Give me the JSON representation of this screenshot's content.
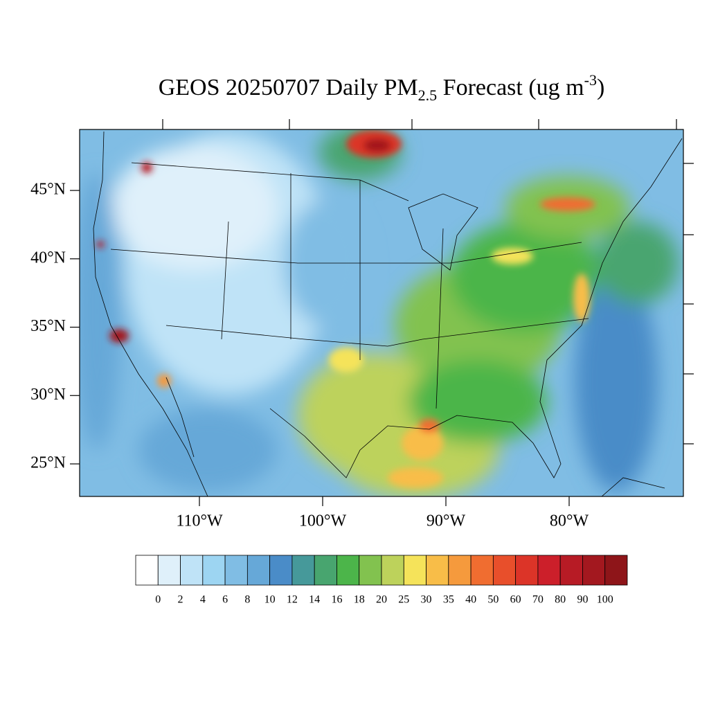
{
  "map": {
    "title": {
      "main": "GEOS 20250707 Daily PM",
      "sub": "2.5",
      "rest": " Forecast (ug m",
      "sup": "-3",
      "end": ")"
    },
    "lat_range": [
      22.62,
      49.46
    ],
    "lon_range": [
      -119.72,
      -70.73
    ],
    "lat_ticks": [
      {
        "value": 25,
        "label": "25°N"
      },
      {
        "value": 30,
        "label": "30°N"
      },
      {
        "value": 35,
        "label": "35°N"
      },
      {
        "value": 40,
        "label": "40°N"
      },
      {
        "value": 45,
        "label": "45°N"
      }
    ],
    "lon_ticks": [
      {
        "value": -110,
        "label": "110°W"
      },
      {
        "value": -100,
        "label": "100°W"
      },
      {
        "value": -90,
        "label": "90°W"
      },
      {
        "value": -80,
        "label": "80°W"
      }
    ],
    "colorbar": {
      "levels": [
        0,
        2,
        4,
        6,
        8,
        10,
        12,
        14,
        16,
        18,
        20,
        25,
        30,
        35,
        40,
        50,
        60,
        70,
        80,
        90,
        100
      ],
      "colors": [
        "#ffffff",
        "#dff0fa",
        "#bfe3f7",
        "#9dd5f2",
        "#80bde4",
        "#66a8d8",
        "#4a8cc8",
        "#46999a",
        "#48a56f",
        "#4cb54a",
        "#82c24f",
        "#bdd25b",
        "#f5e35a",
        "#f8bd48",
        "#f59a3d",
        "#f06d30",
        "#e84f2b",
        "#dc3428",
        "#cc1f2a",
        "#b71b25",
        "#a3181f",
        "#8e1519"
      ]
    }
  }
}
